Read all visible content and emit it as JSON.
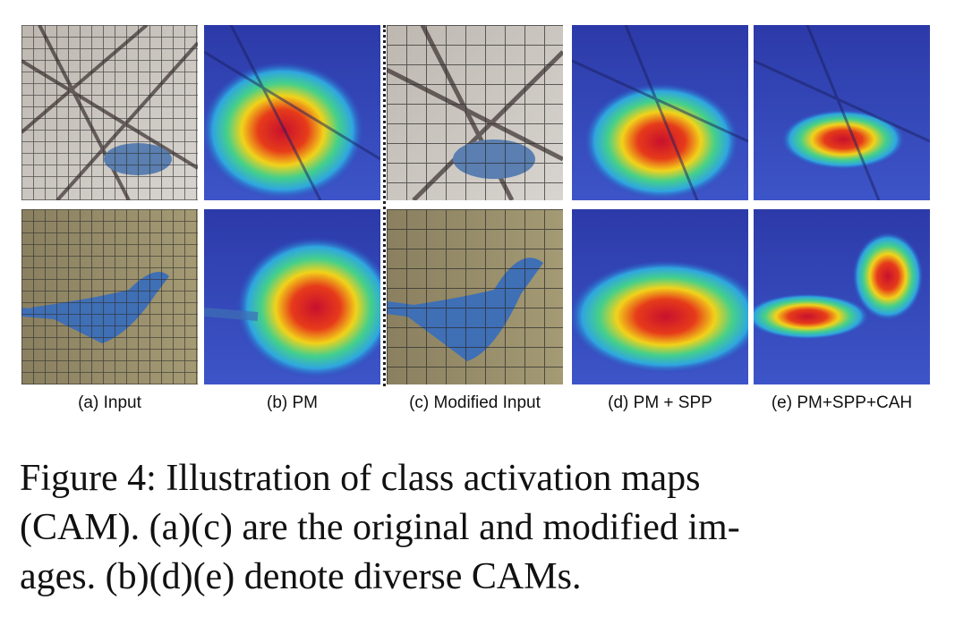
{
  "subfigures": [
    {
      "label": "(a) Input"
    },
    {
      "label": "(b) PM"
    },
    {
      "label": "(c) Modified Input"
    },
    {
      "label": "(d) PM + SPP"
    },
    {
      "label": "(e) PM+SPP+CAH"
    }
  ],
  "caption": {
    "line1": "Figure 4:   Illustration of class activation maps",
    "line2": "(CAM). (a)(c) are the original and modified im-",
    "line3": "ages. (b)(d)(e) denote diverse CAMs."
  }
}
